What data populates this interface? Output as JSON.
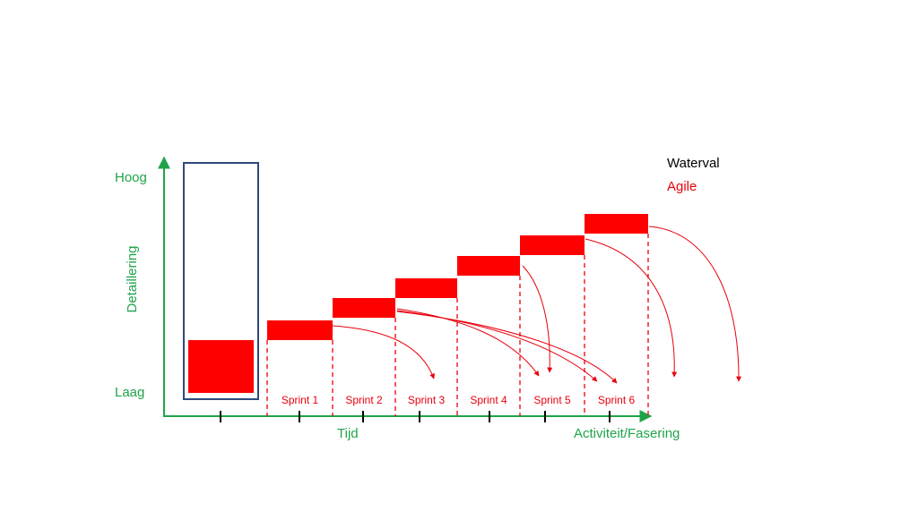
{
  "colors": {
    "axis": "#1fa34a",
    "agile": "#ff0000",
    "agile_text": "#e8000b",
    "waterval_box": "#2f4a7a",
    "black": "#000000"
  },
  "axis": {
    "y_high": "Hoog",
    "y_title": "Detaillering",
    "y_low": "Laag",
    "x_title": "Tijd",
    "x_end": "Activiteit/Fasering"
  },
  "legend": {
    "waterval": "Waterval",
    "agile": "Agile"
  },
  "sprints": [
    {
      "label": "Sprint 1"
    },
    {
      "label": "Sprint 2"
    },
    {
      "label": "Sprint 3"
    },
    {
      "label": "Sprint 4"
    },
    {
      "label": "Sprint 5"
    },
    {
      "label": "Sprint 6"
    }
  ]
}
